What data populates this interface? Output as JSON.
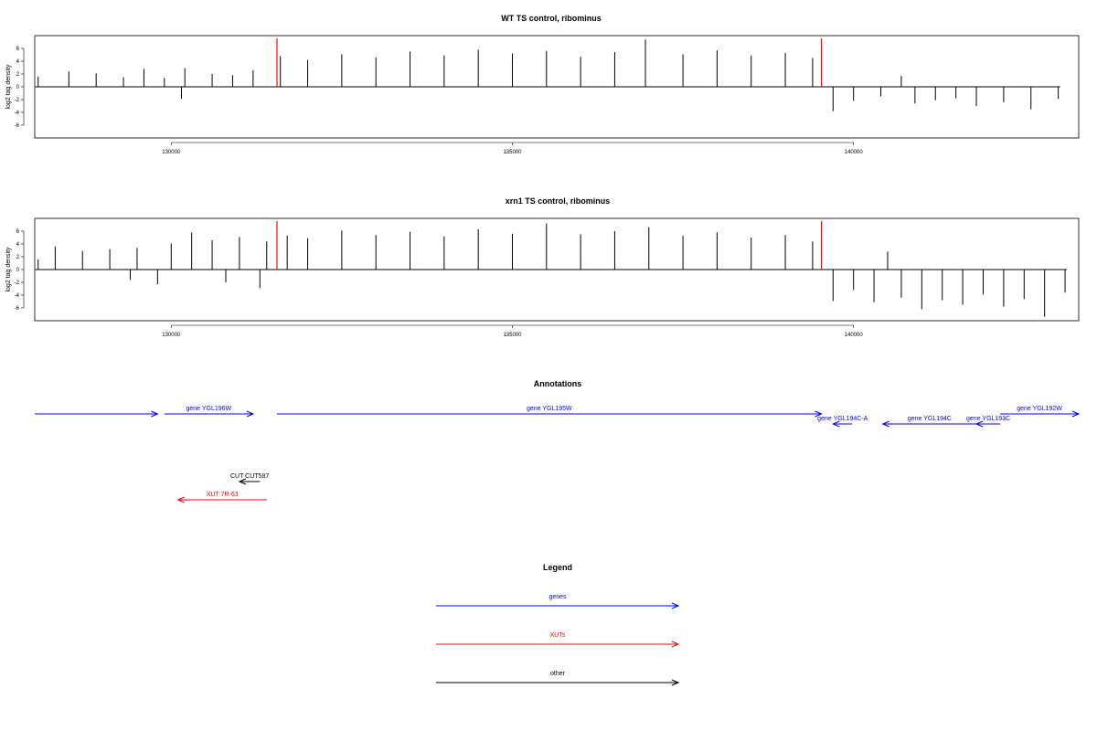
{
  "chart_data": [
    {
      "type": "bar",
      "title": "WT TS control, ribominus",
      "ylabel": "log2 tag density",
      "xlabel": "",
      "xlim": [
        128000,
        143300
      ],
      "ylim": [
        -8,
        8
      ],
      "x_ticks": [
        130000,
        135000,
        140000
      ],
      "x_tick_labels": [
        "130000",
        "135000",
        "140000"
      ],
      "y_ticks": [
        -6,
        -4,
        -2,
        0,
        2,
        4,
        6
      ],
      "y_tick_labels": [
        "-6",
        "-4",
        "-2",
        "0",
        "2",
        "4",
        "6"
      ],
      "grid": false,
      "bar_color": "#000000",
      "baseline_color": "#808080",
      "markers": [
        {
          "x": 131550,
          "color": "#ff0000"
        },
        {
          "x": 139530,
          "color": "#ff0000"
        }
      ],
      "series": [
        {
          "values": [
            [
              128050,
              1.6
            ],
            [
              128500,
              2.4
            ],
            [
              128900,
              2.1
            ],
            [
              129300,
              1.5
            ],
            [
              129600,
              2.8
            ],
            [
              129900,
              1.4
            ],
            [
              130150,
              -1.9
            ],
            [
              130200,
              2.9
            ],
            [
              130600,
              2.0
            ],
            [
              130900,
              1.8
            ],
            [
              131200,
              2.6
            ],
            [
              131600,
              4.8
            ],
            [
              132000,
              4.2
            ],
            [
              132500,
              5.1
            ],
            [
              133000,
              4.6
            ],
            [
              133500,
              5.5
            ],
            [
              134000,
              4.9
            ],
            [
              134500,
              5.8
            ],
            [
              135000,
              5.2
            ],
            [
              135500,
              5.6
            ],
            [
              136000,
              4.7
            ],
            [
              136500,
              5.4
            ],
            [
              136950,
              7.4
            ],
            [
              137500,
              5.1
            ],
            [
              138000,
              5.7
            ],
            [
              138500,
              4.9
            ],
            [
              139000,
              5.3
            ],
            [
              139400,
              4.5
            ],
            [
              139700,
              -3.8
            ],
            [
              140000,
              -2.2
            ],
            [
              140400,
              -1.5
            ],
            [
              140700,
              1.7
            ],
            [
              140900,
              -2.6
            ],
            [
              141200,
              -2.1
            ],
            [
              141500,
              -1.8
            ],
            [
              141800,
              -3.0
            ],
            [
              142200,
              -2.4
            ],
            [
              142600,
              -3.5
            ],
            [
              143000,
              -1.9
            ]
          ]
        }
      ]
    },
    {
      "type": "bar",
      "title": "xrn1 TS control, ribominus",
      "ylabel": "log2 tag density",
      "xlabel": "",
      "xlim": [
        128000,
        143300
      ],
      "ylim": [
        -8,
        8
      ],
      "x_ticks": [
        130000,
        135000,
        140000
      ],
      "x_tick_labels": [
        "130000",
        "135000",
        "140000"
      ],
      "y_ticks": [
        -6,
        -4,
        -2,
        0,
        2,
        4,
        6
      ],
      "y_tick_labels": [
        "-6",
        "-4",
        "-2",
        "0",
        "2",
        "4",
        "6"
      ],
      "grid": false,
      "bar_color": "#000000",
      "baseline_color": "#808080",
      "markers": [
        {
          "x": 131550,
          "color": "#ff0000"
        },
        {
          "x": 139530,
          "color": "#ff0000"
        }
      ],
      "series": [
        {
          "values": [
            [
              128050,
              1.6
            ],
            [
              128300,
              3.6
            ],
            [
              128700,
              2.9
            ],
            [
              129100,
              3.2
            ],
            [
              129400,
              -1.6
            ],
            [
              129500,
              3.4
            ],
            [
              129800,
              -2.3
            ],
            [
              130000,
              4.1
            ],
            [
              130300,
              5.8
            ],
            [
              130600,
              4.6
            ],
            [
              130800,
              -2.0
            ],
            [
              131000,
              5.1
            ],
            [
              131300,
              -2.9
            ],
            [
              131400,
              4.4
            ],
            [
              131700,
              5.3
            ],
            [
              132000,
              4.9
            ],
            [
              132500,
              6.1
            ],
            [
              133000,
              5.4
            ],
            [
              133500,
              5.9
            ],
            [
              134000,
              5.2
            ],
            [
              134500,
              6.3
            ],
            [
              135000,
              5.6
            ],
            [
              135500,
              7.2
            ],
            [
              136000,
              5.5
            ],
            [
              136500,
              6.0
            ],
            [
              137000,
              6.6
            ],
            [
              137500,
              5.3
            ],
            [
              138000,
              5.8
            ],
            [
              138500,
              5.0
            ],
            [
              139000,
              5.4
            ],
            [
              139400,
              4.4
            ],
            [
              139700,
              -4.9
            ],
            [
              140000,
              -3.2
            ],
            [
              140300,
              -5.1
            ],
            [
              140500,
              2.8
            ],
            [
              140700,
              -4.4
            ],
            [
              141000,
              -6.2
            ],
            [
              141300,
              -4.8
            ],
            [
              141600,
              -5.5
            ],
            [
              141900,
              -3.9
            ],
            [
              142200,
              -5.8
            ],
            [
              142500,
              -4.6
            ],
            [
              142800,
              -7.4
            ],
            [
              143100,
              -3.6
            ]
          ]
        }
      ]
    }
  ],
  "annotations": {
    "title": "Annotations",
    "features": [
      {
        "label": "",
        "kind": "gene",
        "start": 128000,
        "end": 129800,
        "strand": "+"
      },
      {
        "label": "gene YGL196W",
        "kind": "gene",
        "start": 129900,
        "end": 131200,
        "strand": "+"
      },
      {
        "label": "gene YGL195W",
        "kind": "gene",
        "start": 131550,
        "end": 139530,
        "strand": "+"
      },
      {
        "label": "gene YGL194C-A",
        "kind": "gene",
        "start": 139700,
        "end": 139980,
        "strand": "-",
        "row": 2
      },
      {
        "label": "gene YGL194C",
        "kind": "gene",
        "start": 140430,
        "end": 141800,
        "strand": "-",
        "row": 2
      },
      {
        "label": "gene YGL193C",
        "kind": "gene",
        "start": 141800,
        "end": 142150,
        "strand": "-",
        "row": 2
      },
      {
        "label": "gene YGL192W",
        "kind": "gene",
        "start": 142150,
        "end": 143300,
        "strand": "+"
      },
      {
        "label": "CUT CUT587",
        "kind": "other",
        "start": 131000,
        "end": 131300,
        "strand": "-",
        "row": 4
      },
      {
        "label": "XUT 7R-63",
        "kind": "xut",
        "start": 130100,
        "end": 131400,
        "strand": "-",
        "row": 5
      }
    ]
  },
  "legend": {
    "title": "Legend",
    "items": [
      {
        "label": "genes",
        "color": "#0000ff"
      },
      {
        "label": "XUTs",
        "color": "#ff0000"
      },
      {
        "label": "other",
        "color": "#000000"
      }
    ]
  },
  "colors": {
    "gene": "#0000ff",
    "xut": "#ff0000",
    "other": "#000000",
    "marker": "#ff0000",
    "baseline": "#808080"
  }
}
